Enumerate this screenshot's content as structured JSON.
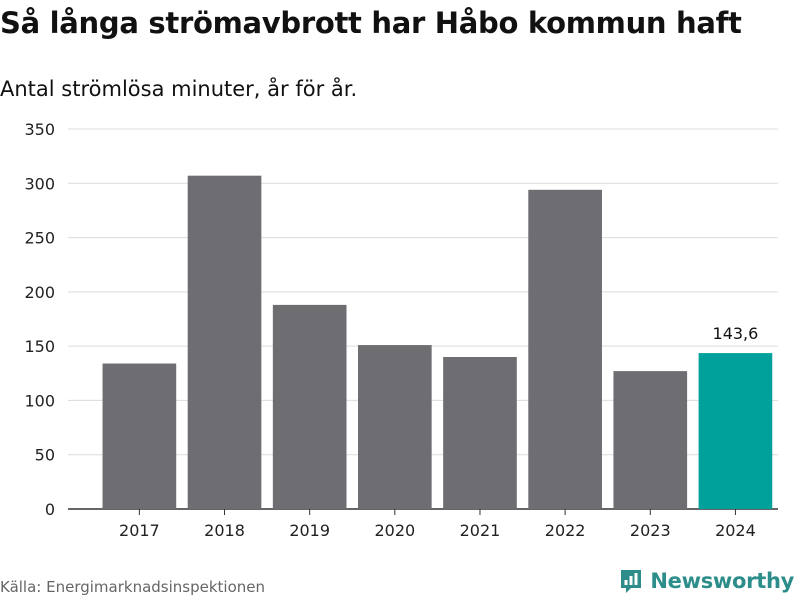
{
  "chart_data": {
    "type": "bar",
    "title": "Så långa strömavbrott har Håbo kommun haft",
    "subtitle": "Antal strömlösa minuter, år för år.",
    "categories": [
      "2017",
      "2018",
      "2019",
      "2020",
      "2021",
      "2022",
      "2023",
      "2024"
    ],
    "values": [
      134,
      307,
      188,
      151,
      140,
      294,
      127,
      143.6
    ],
    "ylim": [
      0,
      350
    ],
    "yticks": [
      0,
      50,
      100,
      150,
      200,
      250,
      300,
      350
    ],
    "grid": true,
    "bar_color": "#6e6d72",
    "highlight_color": "#00a19a",
    "highlight_category": "2024",
    "data_labels": [
      {
        "category": "2024",
        "text": "143,6"
      }
    ]
  },
  "footer": {
    "source": "Källa: Energimarknadsinspektionen",
    "brand": "Newsworthy",
    "brand_icon": "newsworthy-logo-icon",
    "brand_color": "#2c8d8b"
  }
}
